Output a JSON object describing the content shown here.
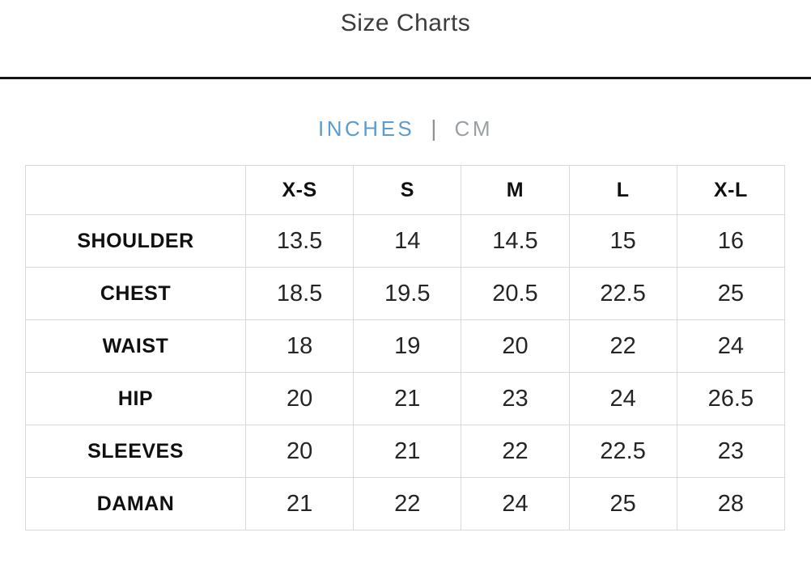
{
  "page": {
    "title": "Size Charts"
  },
  "unit_toggle": {
    "separator": "|",
    "options": [
      {
        "label": "INCHES",
        "active": true
      },
      {
        "label": "CM",
        "active": false
      }
    ],
    "active_color": "#5b9ccf",
    "inactive_color": "#9aa0a4"
  },
  "size_table": {
    "unit": "INCHES",
    "columns": [
      "",
      "X-S",
      "S",
      "M",
      "L",
      "X-L"
    ],
    "rows": [
      {
        "label": "SHOULDER",
        "values": [
          "13.5",
          "14",
          "14.5",
          "15",
          "16"
        ]
      },
      {
        "label": "CHEST",
        "values": [
          "18.5",
          "19.5",
          "20.5",
          "22.5",
          "25"
        ]
      },
      {
        "label": "WAIST",
        "values": [
          "18",
          "19",
          "20",
          "22",
          "24"
        ]
      },
      {
        "label": "HIP",
        "values": [
          "20",
          "21",
          "23",
          "24",
          "26.5"
        ]
      },
      {
        "label": "SLEEVES",
        "values": [
          "20",
          "21",
          "22",
          "22.5",
          "23"
        ]
      },
      {
        "label": "DAMAN",
        "values": [
          "21",
          "22",
          "24",
          "25",
          "28"
        ]
      }
    ]
  },
  "colors": {
    "divider": "#151515",
    "table_border": "#d9d9d9",
    "text_primary": "#101010",
    "title_text": "#3c3c3c"
  }
}
